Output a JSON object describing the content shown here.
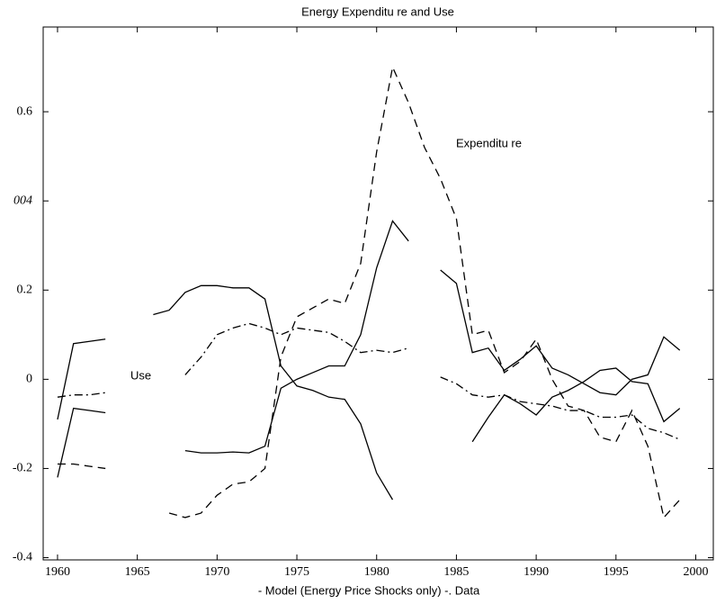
{
  "chart_data": {
    "type": "line",
    "title": "Energy Expenditu re and Use",
    "legend_text": "- Model (Energy Price Shocks only)   -. Data",
    "annotations": [
      "Expenditu re",
      "Use"
    ],
    "x": [
      1960,
      1961,
      1962,
      1963,
      1964,
      1965,
      1966,
      1967,
      1968,
      1969,
      1970,
      1971,
      1972,
      1973,
      1974,
      1975,
      1976,
      1977,
      1978,
      1979,
      1980,
      1981,
      1982,
      1983,
      1984,
      1985,
      1986,
      1987,
      1988,
      1989,
      1990,
      1991,
      1992,
      1993,
      1994,
      1995,
      1996,
      1997,
      1998,
      1999
    ],
    "series": [
      {
        "color": "#000000",
        "dash": "solid",
        "values": [
          -0.22,
          -0.065,
          -0.07,
          -0.075,
          null,
          null,
          null,
          null,
          -0.16,
          -0.165,
          -0.165,
          -0.163,
          -0.165,
          -0.15,
          -0.02,
          0.0,
          0.015,
          0.03,
          0.03,
          0.1,
          0.25,
          0.355,
          0.31,
          null,
          0.245,
          0.215,
          0.06,
          0.07,
          0.02,
          0.045,
          0.075,
          0.025,
          0.01,
          -0.01,
          -0.03,
          -0.035,
          0.0,
          0.01,
          0.095,
          0.065
        ]
      },
      {
        "color": "#000000",
        "dash": "solid",
        "values": [
          -0.09,
          0.08,
          0.085,
          0.09,
          null,
          null,
          0.145,
          0.155,
          0.195,
          0.21,
          0.21,
          0.205,
          0.205,
          0.18,
          0.03,
          -0.015,
          -0.025,
          -0.04,
          -0.045,
          -0.1,
          -0.21,
          -0.27,
          null,
          null,
          null,
          null,
          -0.14,
          -0.085,
          -0.035,
          -0.055,
          -0.08,
          -0.04,
          -0.025,
          -0.005,
          0.02,
          0.025,
          -0.005,
          -0.01,
          -0.095,
          -0.065
        ]
      },
      {
        "color": "#000000",
        "dash": "dashed",
        "values": [
          -0.19,
          -0.19,
          -0.195,
          -0.2,
          null,
          null,
          null,
          -0.3,
          -0.31,
          -0.3,
          -0.26,
          -0.235,
          -0.23,
          -0.2,
          0.05,
          0.14,
          0.16,
          0.18,
          0.17,
          0.26,
          0.51,
          0.7,
          0.62,
          0.52,
          0.45,
          0.36,
          0.1,
          0.11,
          0.015,
          0.04,
          0.09,
          0.0,
          -0.06,
          -0.07,
          -0.13,
          -0.14,
          -0.07,
          -0.15,
          -0.31,
          -0.27
        ]
      },
      {
        "color": "#000000",
        "dash": "dashdot",
        "values": [
          -0.04,
          -0.035,
          -0.035,
          -0.03,
          null,
          null,
          null,
          null,
          0.01,
          0.05,
          0.1,
          0.115,
          0.125,
          0.115,
          0.1,
          0.115,
          0.11,
          0.105,
          0.085,
          0.06,
          0.065,
          0.06,
          0.07,
          null,
          0.005,
          -0.01,
          -0.035,
          -0.04,
          -0.035,
          -0.05,
          -0.055,
          -0.06,
          -0.07,
          -0.07,
          -0.085,
          -0.085,
          -0.08,
          -0.11,
          -0.12,
          -0.135
        ]
      }
    ],
    "xlim": [
      1959.1,
      2001.1
    ],
    "xticks": [
      1960,
      1965,
      1970,
      1975,
      1980,
      1985,
      1990,
      1995,
      2000
    ],
    "ylim": [
      -0.405,
      0.79
    ],
    "yticks": [
      -0.4,
      -0.2,
      0,
      0.2,
      {
        "value": 0.4,
        "label": "004"
      },
      0.6
    ],
    "grid": false
  }
}
